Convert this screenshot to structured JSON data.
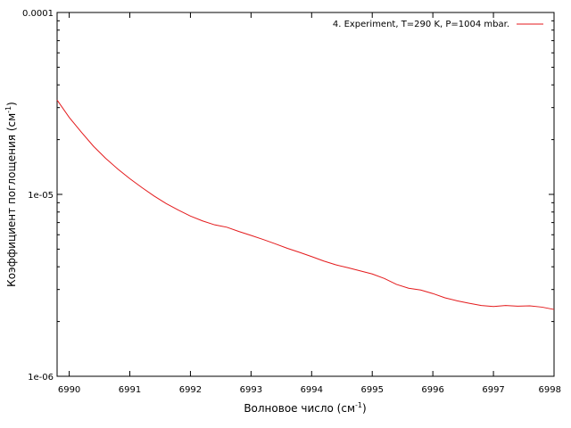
{
  "chart_data": {
    "type": "line",
    "xlabel": "Волновое число (см",
    "xlabel_sup": "-1",
    "xlabel_end": ")",
    "ylabel": "Коэффициент поглощения (см",
    "ylabel_sup": "-1",
    "ylabel_end": ")",
    "xlim": [
      6989.8,
      6998
    ],
    "ylim": [
      1e-06,
      0.0001
    ],
    "yscale": "log",
    "grid": false,
    "legend_position": "top-right",
    "x_ticks": [
      6990,
      6991,
      6992,
      6993,
      6994,
      6995,
      6996,
      6997,
      6998
    ],
    "x_tick_labels": [
      "6990",
      "6991",
      "6992",
      "6993",
      "6994",
      "6995",
      "6996",
      "6997",
      "6998"
    ],
    "y_ticks": [
      1e-06,
      1e-05,
      0.0001
    ],
    "y_tick_labels": [
      "1e-06",
      "1e-05",
      "0.0001"
    ],
    "series": [
      {
        "name": "4. Experiment, T=290 K, P=1004 mbar.",
        "color": "#e41a1c",
        "x": [
          6989.8,
          6990.0,
          6990.2,
          6990.4,
          6990.6,
          6990.8,
          6991.0,
          6991.2,
          6991.4,
          6991.6,
          6991.8,
          6992.0,
          6992.2,
          6992.4,
          6992.6,
          6992.8,
          6993.0,
          6993.2,
          6993.4,
          6993.6,
          6993.8,
          6994.0,
          6994.2,
          6994.4,
          6994.6,
          6994.8,
          6995.0,
          6995.2,
          6995.4,
          6995.6,
          6995.8,
          6996.0,
          6996.2,
          6996.4,
          6996.6,
          6996.8,
          6997.0,
          6997.2,
          6997.4,
          6997.6,
          6997.8,
          6998.0
        ],
        "y": [
          3.3e-05,
          2.65e-05,
          2.2e-05,
          1.84e-05,
          1.58e-05,
          1.38e-05,
          1.22e-05,
          1.09e-05,
          9.8e-06,
          8.9e-06,
          8.2e-06,
          7.6e-06,
          7.15e-06,
          6.8e-06,
          6.6e-06,
          6.25e-06,
          5.95e-06,
          5.65e-06,
          5.35e-06,
          5.05e-06,
          4.8e-06,
          4.55e-06,
          4.3e-06,
          4.1e-06,
          3.95e-06,
          3.8e-06,
          3.65e-06,
          3.45e-06,
          3.2e-06,
          3.05e-06,
          2.98e-06,
          2.85e-06,
          2.7e-06,
          2.6e-06,
          2.52e-06,
          2.45e-06,
          2.42e-06,
          2.45e-06,
          2.43e-06,
          2.44e-06,
          2.4e-06,
          2.33e-06
        ]
      }
    ]
  }
}
